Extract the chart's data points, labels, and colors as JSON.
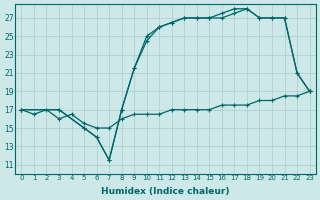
{
  "xlabel": "Humidex (Indice chaleur)",
  "bg_color": "#cce8e8",
  "grid_color": "#aacccc",
  "line_color": "#006666",
  "xlim": [
    -0.5,
    23.5
  ],
  "ylim": [
    10.0,
    28.5
  ],
  "xticks": [
    0,
    1,
    2,
    3,
    4,
    5,
    6,
    7,
    8,
    9,
    10,
    11,
    12,
    13,
    14,
    15,
    16,
    17,
    18,
    19,
    20,
    21,
    22,
    23
  ],
  "yticks": [
    11,
    13,
    15,
    17,
    19,
    21,
    23,
    25,
    27
  ],
  "line1_x": [
    0,
    1,
    2,
    3,
    4,
    5,
    6,
    7,
    8,
    9,
    10,
    11,
    12,
    13,
    14,
    15,
    16,
    17,
    18,
    19,
    20,
    21,
    22,
    23
  ],
  "line1_y": [
    17,
    16.5,
    17,
    16,
    16.5,
    15.5,
    15.0,
    15.0,
    16.0,
    16.5,
    16.5,
    16.5,
    17.0,
    17.0,
    17.0,
    17.0,
    17.5,
    17.5,
    17.5,
    18.0,
    18.0,
    18.5,
    18.5,
    19.0
  ],
  "line2_x": [
    0,
    3,
    5,
    6,
    7,
    8,
    9,
    10,
    11,
    12,
    13,
    14,
    15,
    16,
    17,
    18,
    19,
    20,
    21,
    22,
    23
  ],
  "line2_y": [
    17,
    17,
    15,
    14,
    11.5,
    17,
    21.5,
    24.5,
    26.0,
    26.5,
    27.0,
    27.0,
    27.0,
    27.0,
    27.5,
    28.0,
    27.0,
    27.0,
    27.0,
    21.0,
    19.0
  ],
  "line3_x": [
    0,
    3,
    5,
    6,
    7,
    8,
    9,
    10,
    11,
    12,
    13,
    14,
    15,
    16,
    17,
    18,
    19,
    20,
    21,
    22,
    23
  ],
  "line3_y": [
    17,
    17,
    15,
    14,
    11.5,
    17,
    21.5,
    25.0,
    26.0,
    26.5,
    27.0,
    27.0,
    27.0,
    27.5,
    28.0,
    28.0,
    27.0,
    27.0,
    27.0,
    21.0,
    19.0
  ]
}
